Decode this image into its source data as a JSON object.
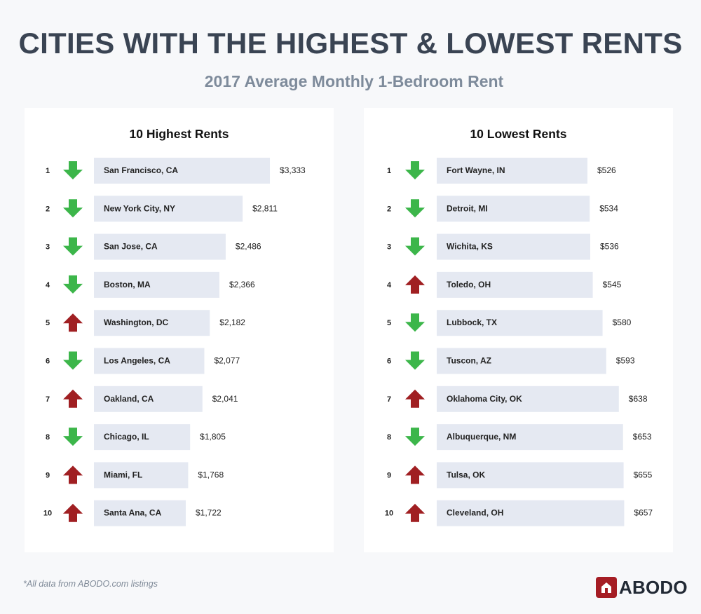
{
  "header": {
    "title": "CITIES WITH THE HIGHEST & LOWEST RENTS",
    "subtitle": "2017 Average Monthly 1-Bedroom Rent"
  },
  "colors": {
    "background": "#f7f8fa",
    "panel": "#ffffff",
    "bar": "#e5e9f2",
    "arrow_down": "#3cb64a",
    "arrow_up": "#a01f22",
    "title": "#3a4453",
    "subtitle": "#7e8b9b",
    "logo": "#a51d24"
  },
  "chart_data": [
    {
      "type": "bar",
      "title": "10 Highest Rents",
      "ranks": [
        "1",
        "2",
        "3",
        "4",
        "5",
        "6",
        "7",
        "8",
        "9",
        "10"
      ],
      "categories": [
        "San Francisco, CA",
        "New York City, NY",
        "San Jose, CA",
        "Boston, MA",
        "Washington, DC",
        "Los Angeles, CA",
        "Oakland, CA",
        "Chicago, IL",
        "Miami, FL",
        "Santa Ana, CA"
      ],
      "values": [
        3333,
        2811,
        2486,
        2366,
        2182,
        2077,
        2041,
        1805,
        1768,
        1722
      ],
      "value_labels": [
        "$3,333",
        "$2,811",
        "$2,486",
        "$2,366",
        "$2,182",
        "$2,077",
        "$2,041",
        "$1,805",
        "$1,768",
        "$1,722"
      ],
      "trend": [
        "down",
        "down",
        "down",
        "down",
        "up",
        "down",
        "up",
        "down",
        "up",
        "up"
      ],
      "orientation": "horizontal"
    },
    {
      "type": "bar",
      "title": "10 Lowest Rents",
      "ranks": [
        "1",
        "2",
        "3",
        "4",
        "5",
        "6",
        "7",
        "8",
        "9",
        "10"
      ],
      "categories": [
        "Fort Wayne, IN",
        "Detroit, MI",
        "Wichita, KS",
        "Toledo, OH",
        "Lubbock, TX",
        "Tuscon, AZ",
        "Oklahoma City, OK",
        "Albuquerque, NM",
        "Tulsa, OK",
        "Cleveland, OH"
      ],
      "values": [
        526,
        534,
        536,
        545,
        580,
        593,
        638,
        653,
        655,
        657
      ],
      "value_labels": [
        "$526",
        "$534",
        "$536",
        "$545",
        "$580",
        "$593",
        "$638",
        "$653",
        "$655",
        "$657"
      ],
      "trend": [
        "down",
        "down",
        "down",
        "up",
        "down",
        "down",
        "up",
        "down",
        "up",
        "up"
      ],
      "orientation": "horizontal"
    }
  ],
  "footer": {
    "footnote": "*All data from ABODO.com listings",
    "logo_text": "ABODO"
  }
}
